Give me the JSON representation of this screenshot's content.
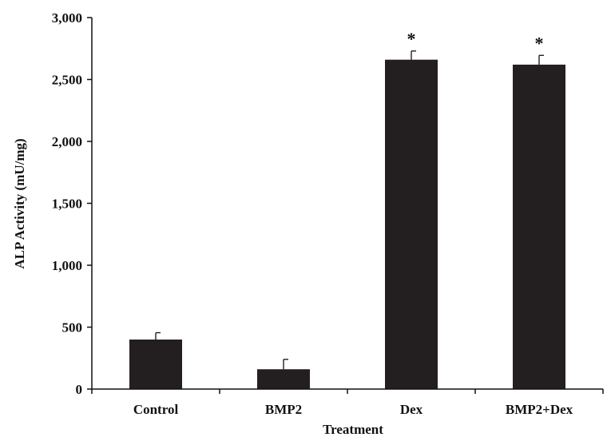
{
  "chart_data": {
    "type": "bar",
    "title": "",
    "xlabel": "Treatment",
    "ylabel": "ALP Activity (mU/mg)",
    "categories": [
      "Control",
      "BMP2",
      "Dex",
      "BMP2+Dex"
    ],
    "values": [
      400,
      160,
      2660,
      2620
    ],
    "error_plus": [
      55,
      80,
      70,
      75
    ],
    "annotations": [
      "",
      "",
      "*",
      "*"
    ],
    "ylim": [
      0,
      3000
    ],
    "yticks": [
      0,
      500,
      1000,
      1500,
      2000,
      2500,
      3000
    ],
    "ytick_labels": [
      "0",
      "500",
      "1,000",
      "1,500",
      "2,000",
      "2,500",
      "3,000"
    ],
    "grid": false,
    "legend": false,
    "bar_color": "#231f20"
  }
}
